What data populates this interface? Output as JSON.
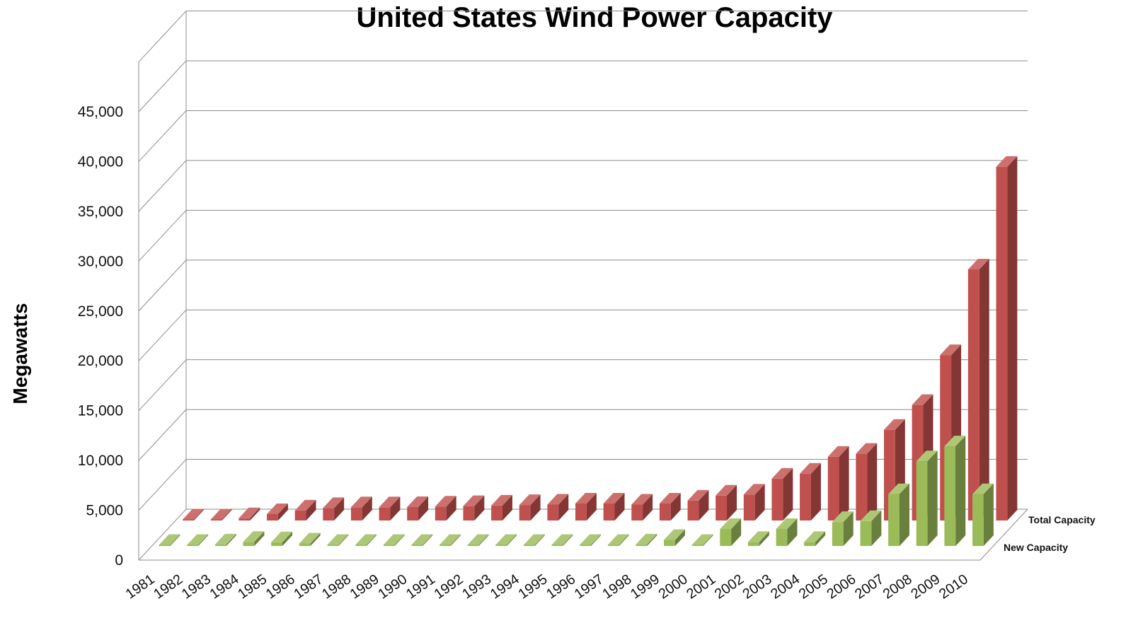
{
  "chart_data": {
    "type": "bar",
    "subtype": "3d-clustered-depth",
    "title": "United States Wind Power Capacity",
    "ylabel": "Megawatts",
    "xlabel": "",
    "ylim": [
      0,
      45000
    ],
    "yticks": [
      "0",
      "5,000",
      "10,000",
      "15,000",
      "20,000",
      "25,000",
      "30,000",
      "35,000",
      "40,000",
      "45,000"
    ],
    "grid": true,
    "categories": [
      "1981",
      "1982",
      "1983",
      "1984",
      "1985",
      "1986",
      "1987",
      "1988",
      "1989",
      "1990",
      "1991",
      "1992",
      "1993",
      "1994",
      "1995",
      "1996",
      "1997",
      "1998",
      "1999",
      "2000",
      "2001",
      "2002",
      "2003",
      "2004",
      "2005",
      "2006",
      "2007",
      "2008",
      "2009",
      "2010"
    ],
    "series": [
      {
        "name": "Total Capacity",
        "color": "#c0504d",
        "values": [
          10,
          80,
          230,
          640,
          1000,
          1250,
          1330,
          1330,
          1350,
          1400,
          1450,
          1500,
          1550,
          1600,
          1700,
          1700,
          1600,
          1700,
          2000,
          2500,
          2600,
          4200,
          4700,
          6400,
          6700,
          9100,
          11600,
          16600,
          25200,
          35500
        ]
      },
      {
        "name": "New Capacity",
        "color": "#9bbb59",
        "values": [
          10,
          70,
          150,
          410,
          370,
          250,
          80,
          10,
          20,
          50,
          50,
          50,
          50,
          50,
          100,
          20,
          20,
          150,
          600,
          100,
          1700,
          400,
          1700,
          400,
          2400,
          2500,
          5200,
          8500,
          10000,
          5200
        ]
      }
    ]
  }
}
